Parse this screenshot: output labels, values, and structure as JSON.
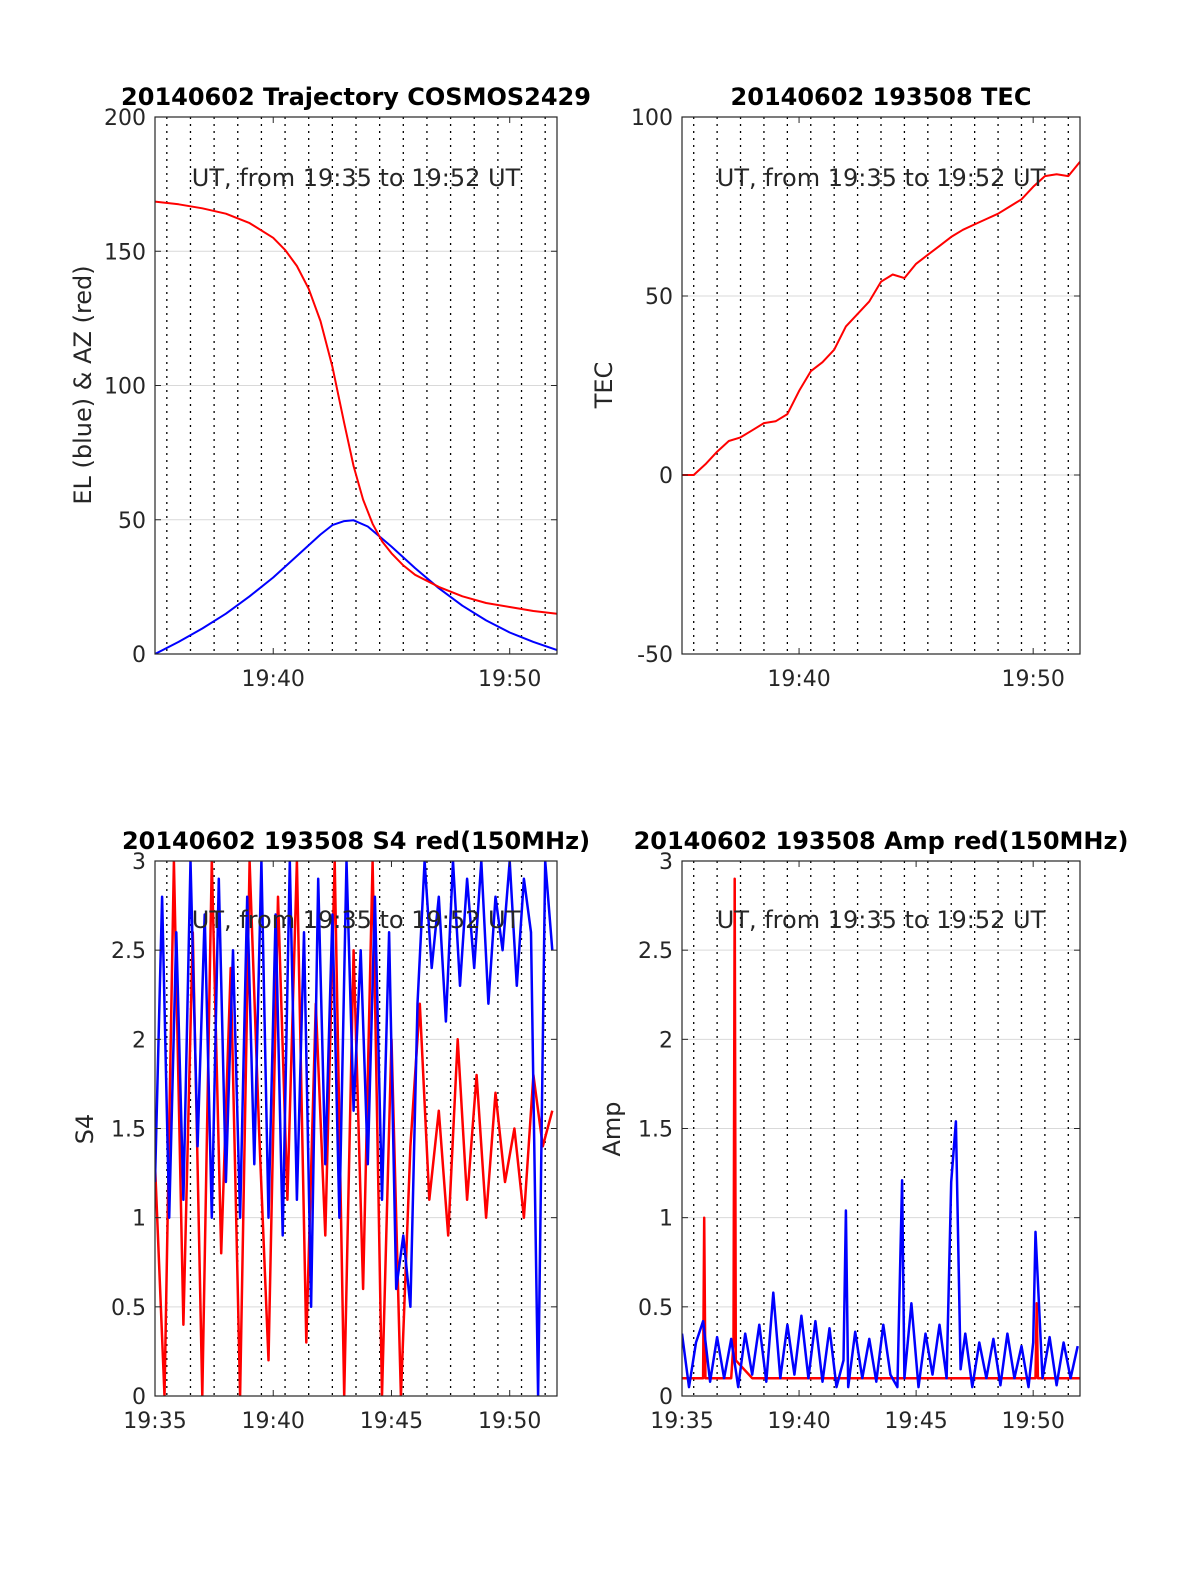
{
  "colors": {
    "el": "#0000ff",
    "az": "#ff0000",
    "grid": "#d9d9d9",
    "vline": "#000000"
  },
  "chart_data": [
    {
      "id": "traj",
      "type": "line",
      "title": "20140602 Trajectory COSMOS2429",
      "xlabel": "UT, from 19:35 to 19:52 UT",
      "ylabel": "EL (blue) & AZ (red)",
      "xlim": [
        0,
        17
      ],
      "ylim": [
        0,
        200
      ],
      "xticks": [
        {
          "x": 5,
          "label": "19:40"
        },
        {
          "x": 15,
          "label": "19:50"
        }
      ],
      "yticks": [
        {
          "y": 0,
          "label": "0"
        },
        {
          "y": 50,
          "label": "50"
        },
        {
          "y": 100,
          "label": "100"
        },
        {
          "y": 150,
          "label": "150"
        },
        {
          "y": 200,
          "label": "200"
        }
      ],
      "grid": "horizontal",
      "series": [
        {
          "key": "el",
          "color": "#0000ff",
          "x": [
            0,
            1,
            2,
            3,
            4,
            5,
            6,
            7,
            7.5,
            8,
            8.4,
            9,
            10,
            11,
            12,
            13,
            14,
            15,
            16,
            17
          ],
          "y": [
            0,
            4.5,
            9.5,
            15,
            21.5,
            28.5,
            36.5,
            44.5,
            48,
            49.5,
            49.8,
            47.5,
            40,
            32,
            24.5,
            18,
            12.5,
            8,
            4.5,
            1.5
          ]
        },
        {
          "key": "az",
          "color": "#ff0000",
          "x": [
            0,
            1,
            2,
            3,
            4,
            5,
            5.5,
            6,
            6.5,
            7,
            7.5,
            8,
            8.4,
            8.8,
            9.2,
            9.6,
            10,
            10.5,
            11,
            12,
            13,
            14,
            15,
            16,
            17
          ],
          "y": [
            168.5,
            167.5,
            166,
            164,
            160.5,
            155,
            150.5,
            144.5,
            136,
            124,
            107,
            86,
            70,
            57.5,
            48.5,
            42,
            37.5,
            33,
            29.5,
            25,
            21.5,
            19,
            17.5,
            16,
            15
          ]
        }
      ]
    },
    {
      "id": "tec",
      "type": "line",
      "title": "20140602 193508 TEC",
      "xlabel": "UT, from 19:35 to 19:52 UT",
      "ylabel": "TEC",
      "xlim": [
        0,
        17
      ],
      "ylim": [
        -50,
        100
      ],
      "xticks": [
        {
          "x": 5,
          "label": "19:40"
        },
        {
          "x": 15,
          "label": "19:50"
        }
      ],
      "yticks": [
        {
          "y": -50,
          "label": "-50"
        },
        {
          "y": 0,
          "label": "0"
        },
        {
          "y": 50,
          "label": "50"
        },
        {
          "y": 100,
          "label": "100"
        }
      ],
      "grid": "horizontal",
      "series": [
        {
          "key": "tec",
          "color": "#ff0000",
          "x": [
            0,
            0.5,
            1,
            1.5,
            2,
            2.5,
            3,
            3.5,
            4,
            4.5,
            5,
            5.5,
            6,
            6.5,
            7,
            7.5,
            8,
            8.5,
            9,
            9.5,
            10,
            10.5,
            11,
            11.5,
            12,
            12.5,
            13,
            13.5,
            14,
            14.5,
            15,
            15.5,
            16,
            16.5,
            17
          ],
          "y": [
            0,
            0,
            3,
            6.5,
            9.5,
            10.5,
            12.5,
            14.5,
            15,
            17,
            23.5,
            29,
            31.5,
            35,
            41.5,
            45,
            48.5,
            54,
            56,
            55,
            59,
            61.5,
            64,
            66.5,
            68.5,
            70,
            71.5,
            73,
            75,
            77,
            80.5,
            83.5,
            84,
            83.5,
            87.5
          ]
        }
      ]
    },
    {
      "id": "s4",
      "type": "line",
      "title": "20140602 193508 S4 red(150MHz)",
      "xlabel": "UT, from 19:35 to 19:52 UT",
      "ylabel": "S4",
      "xlim": [
        0,
        17
      ],
      "ylim": [
        0,
        3
      ],
      "xticks": [
        {
          "x": 0,
          "label": "19:35"
        },
        {
          "x": 5,
          "label": "19:40"
        },
        {
          "x": 10,
          "label": "19:45"
        },
        {
          "x": 15,
          "label": "19:50"
        }
      ],
      "yticks": [
        {
          "y": 0,
          "label": "0"
        },
        {
          "y": 0.5,
          "label": "0.5"
        },
        {
          "y": 1,
          "label": "1"
        },
        {
          "y": 1.5,
          "label": "1.5"
        },
        {
          "y": 2,
          "label": "2"
        },
        {
          "y": 2.5,
          "label": "2.5"
        },
        {
          "y": 3,
          "label": "3"
        }
      ],
      "grid": "horizontal",
      "series": [
        {
          "key": "s4_red",
          "color": "#ff0000",
          "x": [
            0,
            0.4,
            0.8,
            1.2,
            1.6,
            2,
            2.4,
            2.8,
            3.2,
            3.6,
            4,
            4.4,
            4.8,
            5.2,
            5.6,
            6,
            6.4,
            6.8,
            7.2,
            7.6,
            8,
            8.4,
            8.8,
            9.2,
            9.6,
            10,
            10.4,
            10.8,
            11.2,
            11.6,
            12,
            12.4,
            12.8,
            13.2,
            13.6,
            14,
            14.4,
            14.8,
            15.2,
            15.6,
            16,
            16.4,
            16.8
          ],
          "y": [
            1.3,
            0,
            3,
            0.4,
            2.6,
            0,
            3,
            0.8,
            2.4,
            0,
            3,
            1.5,
            0.2,
            2.8,
            1.1,
            3,
            0.3,
            2.2,
            0.9,
            3,
            0,
            2.5,
            0.6,
            3,
            0,
            2,
            0,
            1.4,
            2.2,
            1.1,
            1.6,
            0.9,
            2.0,
            1.1,
            1.8,
            1.0,
            1.7,
            1.2,
            1.5,
            1.0,
            1.8,
            1.4,
            1.6
          ]
        },
        {
          "key": "s4_blue",
          "color": "#0000ff",
          "x": [
            0,
            0.3,
            0.6,
            0.9,
            1.2,
            1.5,
            1.8,
            2.1,
            2.4,
            2.7,
            3,
            3.3,
            3.6,
            3.9,
            4.2,
            4.5,
            4.8,
            5.1,
            5.4,
            5.7,
            6,
            6.3,
            6.6,
            6.9,
            7.2,
            7.5,
            7.8,
            8.1,
            8.4,
            8.7,
            9,
            9.3,
            9.6,
            9.9,
            10.2,
            10.5,
            10.8,
            11.1,
            11.4,
            11.7,
            12,
            12.3,
            12.6,
            12.9,
            13.2,
            13.5,
            13.8,
            14.1,
            14.4,
            14.7,
            15,
            15.3,
            15.6,
            15.9,
            16.2,
            16.5,
            16.8
          ],
          "y": [
            1.2,
            2.8,
            1.0,
            2.6,
            1.1,
            3.0,
            1.4,
            2.7,
            1.0,
            2.9,
            1.2,
            2.5,
            1.0,
            2.8,
            1.3,
            3.0,
            1.0,
            2.7,
            0.9,
            3.0,
            1.1,
            2.6,
            0.5,
            2.9,
            1.3,
            2.7,
            1.0,
            3.0,
            1.6,
            2.5,
            1.3,
            2.8,
            1.1,
            2.6,
            0.6,
            0.9,
            0.5,
            2.2,
            3.0,
            2.4,
            2.8,
            2.1,
            3.0,
            2.3,
            2.9,
            2.4,
            3.0,
            2.2,
            2.8,
            2.5,
            3.0,
            2.3,
            2.9,
            2.6,
            0.0,
            3.0,
            2.5
          ]
        }
      ]
    },
    {
      "id": "amp",
      "type": "line",
      "title": "20140602 193508 Amp red(150MHz)",
      "xlabel": "UT, from 19:35 to 19:52 UT",
      "ylabel": "Amp",
      "xlim": [
        0,
        17
      ],
      "ylim": [
        0,
        3
      ],
      "xticks": [
        {
          "x": 0,
          "label": "19:35"
        },
        {
          "x": 5,
          "label": "19:40"
        },
        {
          "x": 10,
          "label": "19:45"
        },
        {
          "x": 15,
          "label": "19:50"
        }
      ],
      "yticks": [
        {
          "y": 0,
          "label": "0"
        },
        {
          "y": 0.5,
          "label": "0.5"
        },
        {
          "y": 1,
          "label": "1"
        },
        {
          "y": 1.5,
          "label": "1.5"
        },
        {
          "y": 2,
          "label": "2"
        },
        {
          "y": 2.5,
          "label": "2.5"
        },
        {
          "y": 3,
          "label": "3"
        }
      ],
      "grid": "horizontal",
      "series": [
        {
          "key": "amp_red",
          "color": "#ff0000",
          "x": [
            0,
            0.9,
            0.95,
            1.0,
            2.1,
            2.2,
            2.25,
            2.3,
            3.0,
            15.1,
            15.15,
            15.2,
            17
          ],
          "y": [
            0.1,
            0.1,
            1.0,
            0.1,
            0.1,
            0.3,
            2.9,
            0.2,
            0.1,
            0.1,
            0.52,
            0.1,
            0.1
          ]
        },
        {
          "key": "amp_blue",
          "color": "#0000ff",
          "x": [
            0,
            0.3,
            0.6,
            0.9,
            1.2,
            1.5,
            1.8,
            2.1,
            2.4,
            2.7,
            3.0,
            3.3,
            3.6,
            3.9,
            4.2,
            4.5,
            4.8,
            5.1,
            5.4,
            5.7,
            6.0,
            6.3,
            6.6,
            6.9,
            7.0,
            7.1,
            7.4,
            7.7,
            8.0,
            8.3,
            8.6,
            8.9,
            9.2,
            9.4,
            9.5,
            9.8,
            10.1,
            10.4,
            10.7,
            11.0,
            11.3,
            11.5,
            11.7,
            11.9,
            12.1,
            12.4,
            12.7,
            13.0,
            13.3,
            13.6,
            13.9,
            14.2,
            14.5,
            14.8,
            15.0,
            15.1,
            15.4,
            15.7,
            16.0,
            16.3,
            16.6,
            16.9
          ],
          "y": [
            0.35,
            0.05,
            0.3,
            0.42,
            0.08,
            0.33,
            0.1,
            0.32,
            0.05,
            0.35,
            0.12,
            0.4,
            0.08,
            0.58,
            0.1,
            0.4,
            0.12,
            0.45,
            0.1,
            0.42,
            0.08,
            0.38,
            0.05,
            0.2,
            1.04,
            0.05,
            0.36,
            0.1,
            0.32,
            0.08,
            0.4,
            0.12,
            0.05,
            1.21,
            0.1,
            0.52,
            0.05,
            0.35,
            0.12,
            0.4,
            0.1,
            1.2,
            1.54,
            0.15,
            0.35,
            0.05,
            0.3,
            0.1,
            0.32,
            0.06,
            0.35,
            0.1,
            0.28,
            0.05,
            0.3,
            0.92,
            0.1,
            0.33,
            0.06,
            0.3,
            0.1,
            0.28
          ]
        }
      ]
    }
  ]
}
